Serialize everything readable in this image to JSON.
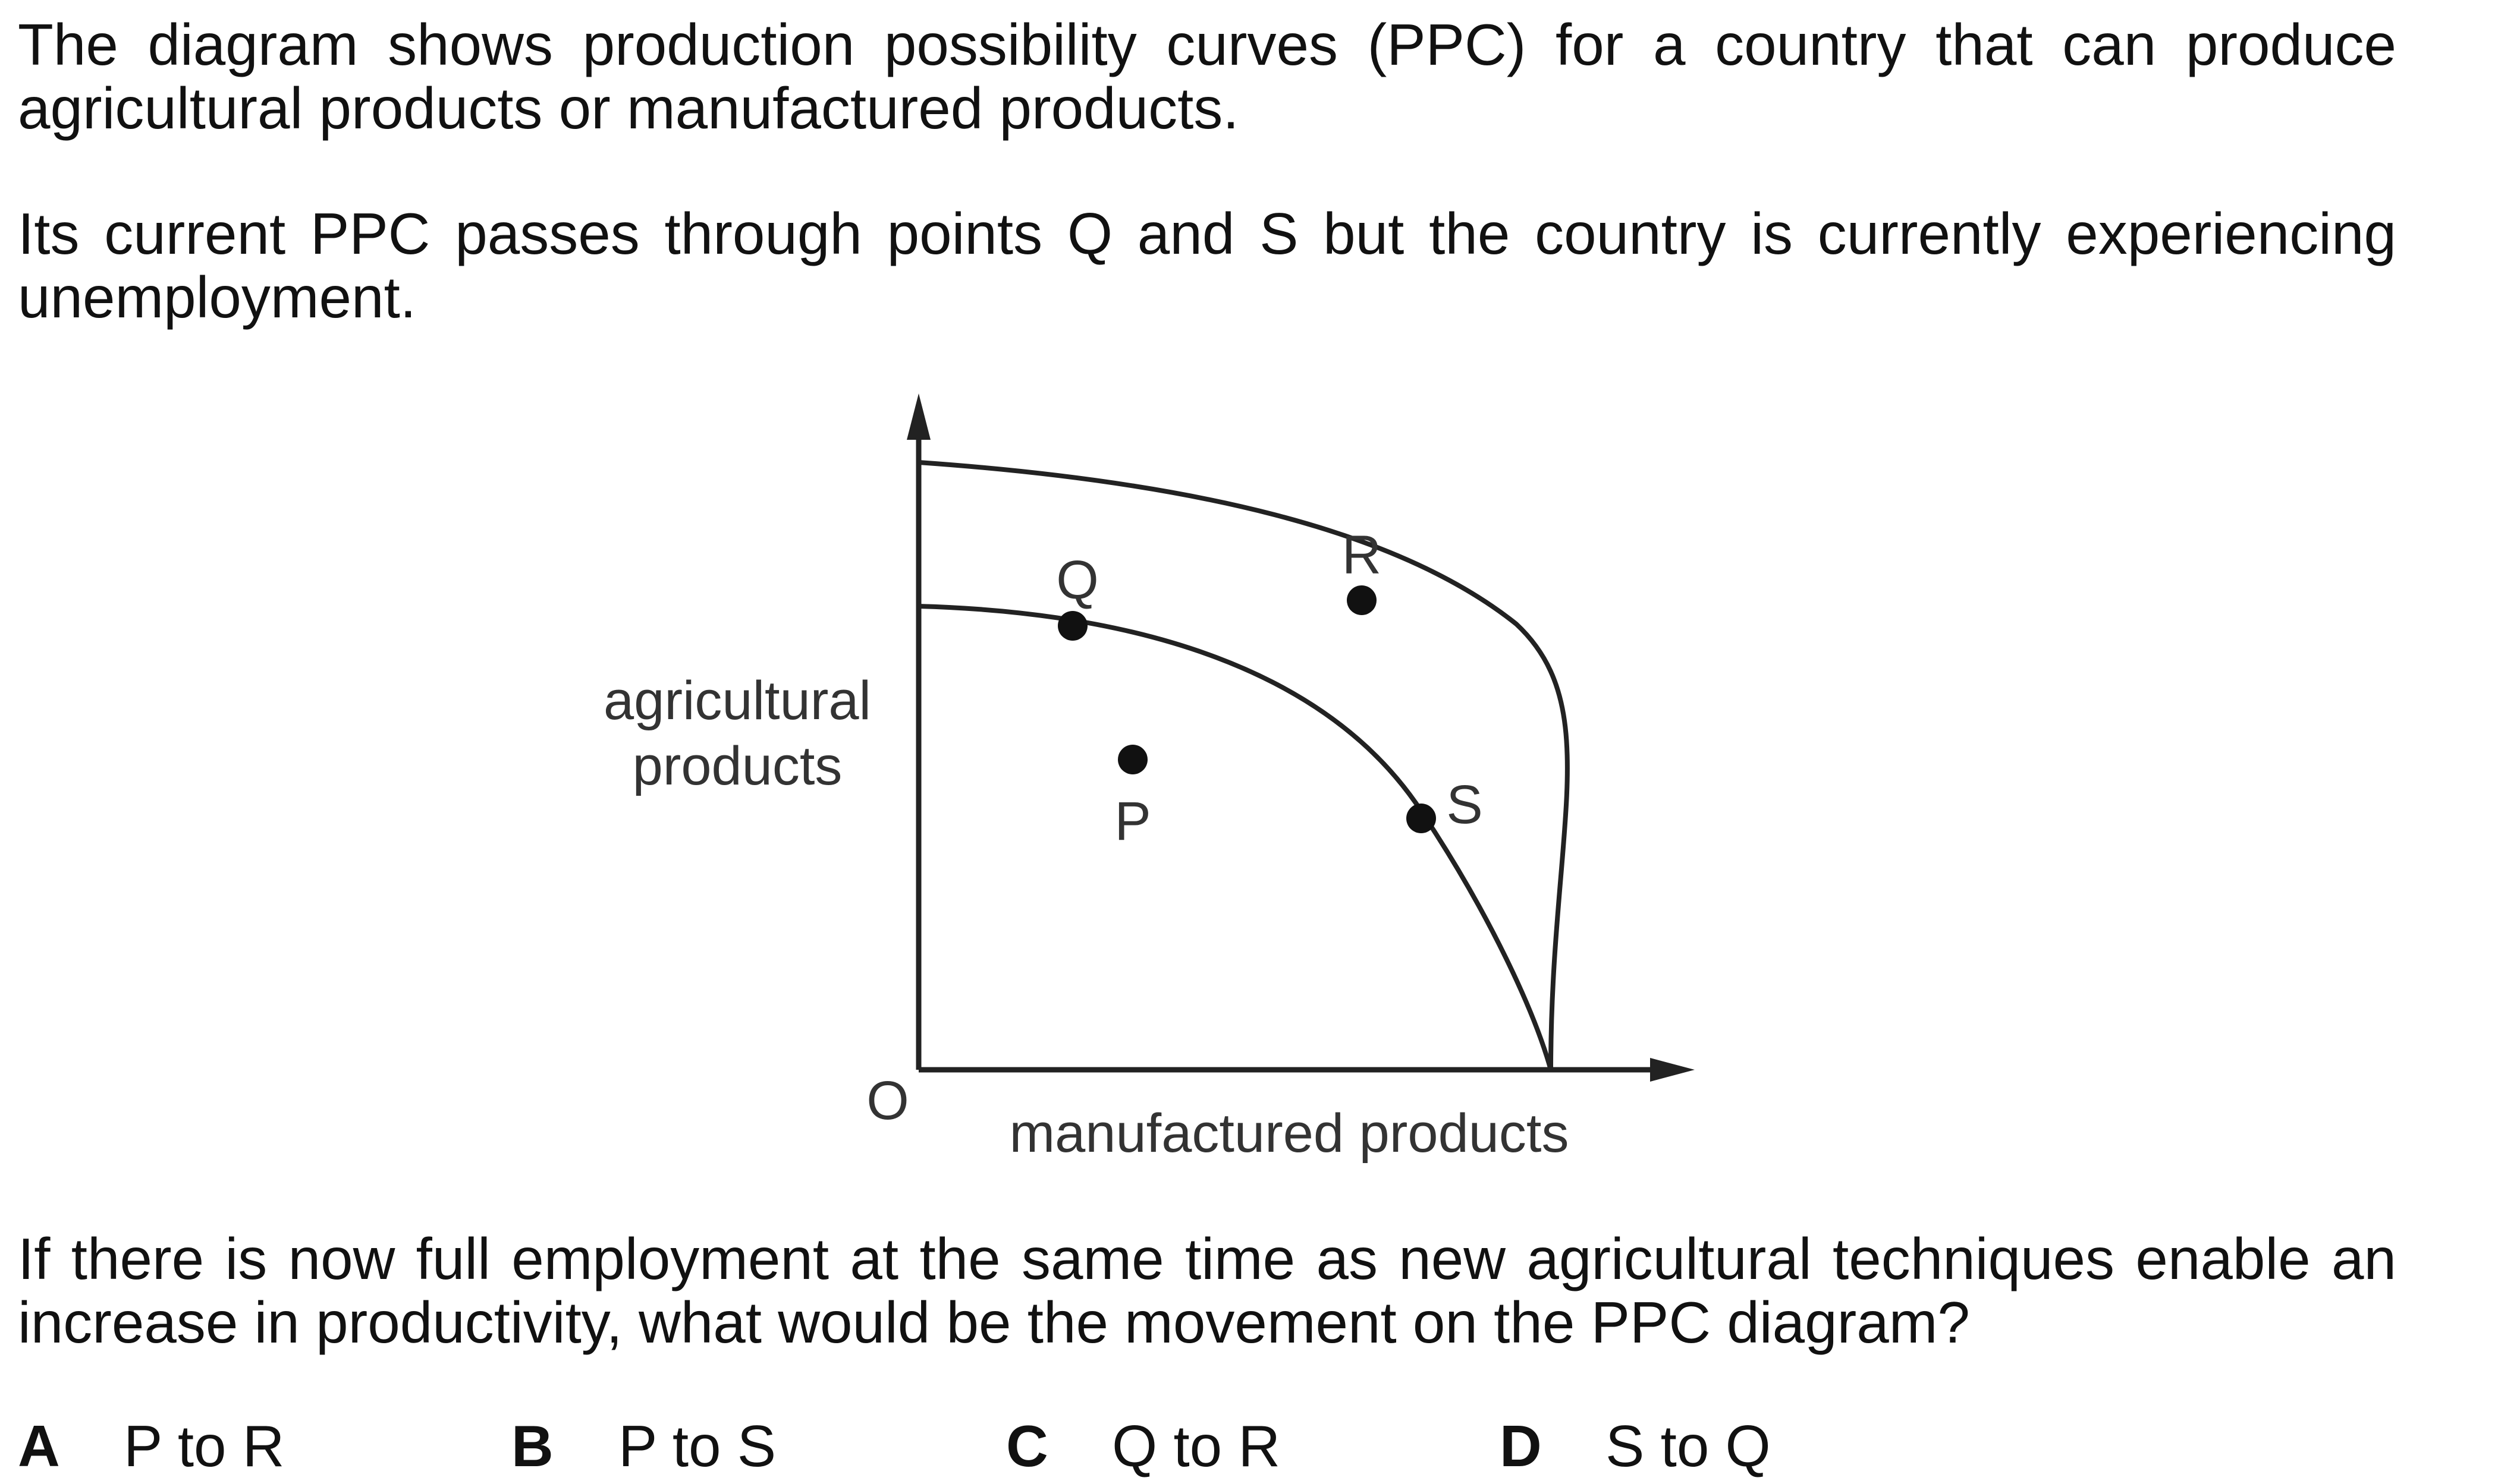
{
  "question": {
    "intro": "The diagram shows production possibility curves (PPC) for a country that can produce agricultural products or manufactured products.",
    "context": "Its current PPC passes through points Q and S but the country is currently experiencing unemployment.",
    "prompt": "If there is now full employment at the same time as new agricultural techniques enable an increase in productivity, what would be the movement on the PPC diagram?"
  },
  "diagram": {
    "y_axis_label_line1": "agricultural",
    "y_axis_label_line2": "products",
    "x_axis_label": "manufactured products",
    "origin_label": "O",
    "points": [
      {
        "label": "Q"
      },
      {
        "label": "R"
      },
      {
        "label": "P"
      },
      {
        "label": "S"
      }
    ]
  },
  "options": [
    {
      "letter": "A",
      "text": "P to R"
    },
    {
      "letter": "B",
      "text": "P to S"
    },
    {
      "letter": "C",
      "text": "Q to R"
    },
    {
      "letter": "D",
      "text": "S to Q"
    }
  ]
}
